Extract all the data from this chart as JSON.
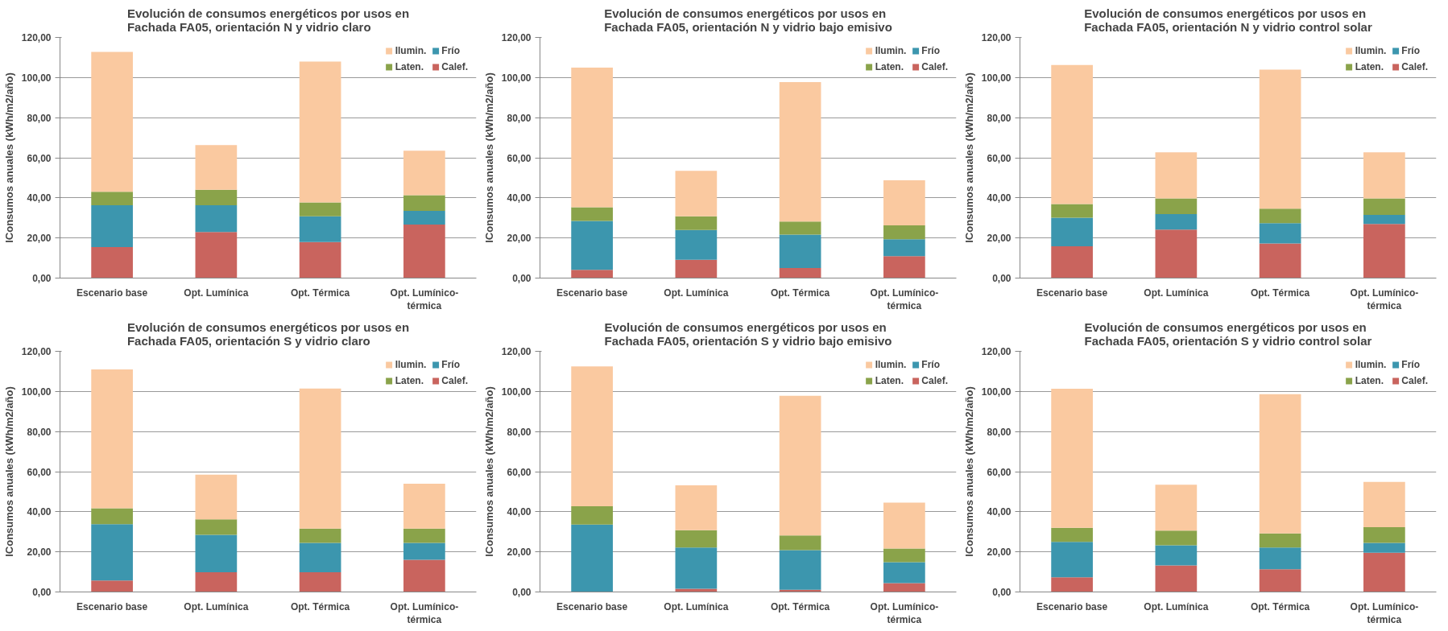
{
  "chart_data": [
    {
      "type": "bar",
      "stacked": true,
      "title": "Evolución de consumos energéticos por usos en\nFachada FA05, orientación N y vidrio claro",
      "ylabel": "lConsumos anuales (kWh/m2/año)",
      "categories": [
        "Escenario base",
        "Opt. Lumínica",
        "Opt. Térmica",
        "Opt. Lumínico-térmica"
      ],
      "ylim": [
        0,
        120
      ],
      "yticks": [
        {
          "value": 0,
          "label": "0,00"
        },
        {
          "value": 20,
          "label": "20,00"
        },
        {
          "value": 40,
          "label": "40,00"
        },
        {
          "value": 60,
          "label": "60,00"
        },
        {
          "value": 80,
          "label": "80,00"
        },
        {
          "value": 100,
          "label": "100,00"
        },
        {
          "value": 120,
          "label": "120,00"
        }
      ],
      "grid": "y",
      "legend": "top right",
      "series": [
        {
          "name": "Calef.",
          "color": "#c9645e",
          "values": [
            15.5,
            23,
            18,
            26.7
          ]
        },
        {
          "name": "Frío",
          "color": "#3c96ae",
          "values": [
            20.8,
            13.3,
            12.8,
            6.8
          ]
        },
        {
          "name": "Laten.",
          "color": "#8aa34a",
          "values": [
            6.7,
            7.7,
            6.9,
            7.8
          ]
        },
        {
          "name": "Ilumin.",
          "color": "#fac9a0",
          "values": [
            69.8,
            22.3,
            70.3,
            22.2
          ]
        }
      ]
    },
    {
      "type": "bar",
      "stacked": true,
      "title": "Evolución de consumos energéticos por usos en\nFachada FA05, orientación N y vidrio bajo emisivo",
      "ylabel": "lConsumos anuales (kWh/m2/año)",
      "categories": [
        "Escenario base",
        "Opt. Lumínica",
        "Opt. Térmica",
        "Opt. Lumínico-térmica"
      ],
      "ylim": [
        0,
        120
      ],
      "yticks": [
        {
          "value": 0,
          "label": "0,00"
        },
        {
          "value": 20,
          "label": "20,00"
        },
        {
          "value": 40,
          "label": "40,00"
        },
        {
          "value": 60,
          "label": "60,00"
        },
        {
          "value": 80,
          "label": "80,00"
        },
        {
          "value": 100,
          "label": "100,00"
        },
        {
          "value": 120,
          "label": "120,00"
        }
      ],
      "grid": "y",
      "legend": "top right",
      "series": [
        {
          "name": "Calef.",
          "color": "#c9645e",
          "values": [
            4.1,
            9.1,
            5,
            10.9
          ]
        },
        {
          "name": "Frío",
          "color": "#3c96ae",
          "values": [
            24.4,
            14.9,
            16.7,
            8.5
          ]
        },
        {
          "name": "Laten.",
          "color": "#8aa34a",
          "values": [
            6.8,
            6.8,
            6.5,
            6.9
          ]
        },
        {
          "name": "Ilumin.",
          "color": "#fac9a0",
          "values": [
            69.7,
            22.7,
            69.5,
            22.5
          ]
        }
      ]
    },
    {
      "type": "bar",
      "stacked": true,
      "title": "Evolución de consumos energéticos por usos en\nFachada FA05, orientación N y vidrio control solar",
      "ylabel": "lConsumos anuales (kWh/m2/año)",
      "categories": [
        "Escenario base",
        "Opt. Lumínica",
        "Opt. Térmica",
        "Opt. Lumínico-térmica"
      ],
      "ylim": [
        0,
        120
      ],
      "yticks": [
        {
          "value": 0,
          "label": "0,00"
        },
        {
          "value": 20,
          "label": "20,00"
        },
        {
          "value": 40,
          "label": "40,00"
        },
        {
          "value": 60,
          "label": "60,00"
        },
        {
          "value": 80,
          "label": "80,00"
        },
        {
          "value": 100,
          "label": "100,00"
        },
        {
          "value": 120,
          "label": "120,00"
        }
      ],
      "grid": "y",
      "legend": "top right",
      "series": [
        {
          "name": "Calef.",
          "color": "#c9645e",
          "values": [
            15.9,
            24.2,
            17.3,
            27
          ]
        },
        {
          "name": "Frío",
          "color": "#3c96ae",
          "values": [
            14.2,
            7.7,
            10.1,
            4.5
          ]
        },
        {
          "name": "Laten.",
          "color": "#8aa34a",
          "values": [
            6.8,
            7.8,
            7.2,
            8.2
          ]
        },
        {
          "name": "Ilumin.",
          "color": "#fac9a0",
          "values": [
            69.4,
            23,
            69.3,
            23
          ]
        }
      ]
    },
    {
      "type": "bar",
      "stacked": true,
      "title": "Evolución de consumos energéticos por usos en\nFachada FA05, orientación S y vidrio claro",
      "ylabel": "lConsumos anuales (kWh/m2/año)",
      "categories": [
        "Escenario base",
        "Opt. Lumínica",
        "Opt. Térmica",
        "Opt. Lumínico-térmica"
      ],
      "ylim": [
        0,
        120
      ],
      "yticks": [
        {
          "value": 0,
          "label": "0,00"
        },
        {
          "value": 20,
          "label": "20,00"
        },
        {
          "value": 40,
          "label": "40,00"
        },
        {
          "value": 60,
          "label": "60,00"
        },
        {
          "value": 80,
          "label": "80,00"
        },
        {
          "value": 100,
          "label": "100,00"
        },
        {
          "value": 120,
          "label": "120,00"
        }
      ],
      "grid": "y",
      "legend": "top right",
      "series": [
        {
          "name": "Calef.",
          "color": "#c9645e",
          "values": [
            5.7,
            9.8,
            9.8,
            16.1
          ]
        },
        {
          "name": "Frío",
          "color": "#3c96ae",
          "values": [
            28.1,
            18.7,
            14.7,
            8.4
          ]
        },
        {
          "name": "Laten.",
          "color": "#8aa34a",
          "values": [
            7.9,
            7.7,
            7.1,
            7.1
          ]
        },
        {
          "name": "Ilumin.",
          "color": "#fac9a0",
          "values": [
            69.3,
            22.3,
            69.8,
            22.4
          ]
        }
      ]
    },
    {
      "type": "bar",
      "stacked": true,
      "title": "Evolución de consumos energéticos por usos en\nFachada FA05, orientación S y vidrio bajo emisivo",
      "ylabel": "lConsumos anuales (kWh/m2/año)",
      "categories": [
        "Escenario base",
        "Opt. Lumínica",
        "Opt. Térmica",
        "Opt. Lumínico-térmica"
      ],
      "ylim": [
        0,
        120
      ],
      "yticks": [
        {
          "value": 0,
          "label": "0,00"
        },
        {
          "value": 20,
          "label": "20,00"
        },
        {
          "value": 40,
          "label": "40,00"
        },
        {
          "value": 60,
          "label": "60,00"
        },
        {
          "value": 80,
          "label": "80,00"
        },
        {
          "value": 100,
          "label": "100,00"
        },
        {
          "value": 120,
          "label": "120,00"
        }
      ],
      "grid": "y",
      "legend": "top right",
      "series": [
        {
          "name": "Calef.",
          "color": "#c9645e",
          "values": [
            0,
            1.6,
            1.1,
            4.4
          ]
        },
        {
          "name": "Frío",
          "color": "#3c96ae",
          "values": [
            33.6,
            20.6,
            19.8,
            10.4
          ]
        },
        {
          "name": "Laten.",
          "color": "#8aa34a",
          "values": [
            9.1,
            8.6,
            7.3,
            6.9
          ]
        },
        {
          "name": "Ilumin.",
          "color": "#fac9a0",
          "values": [
            69.8,
            22.4,
            69.6,
            22.8
          ]
        }
      ]
    },
    {
      "type": "bar",
      "stacked": true,
      "title": "Evolución de consumos energéticos por usos en\nFachada FA05, orientación S y vidrio control solar",
      "ylabel": "lConsumos anuales (kWh/m2/año)",
      "categories": [
        "Escenario base",
        "Opt. Lumínica",
        "Opt. Térmica",
        "Opt. Lumínico-térmica"
      ],
      "ylim": [
        0,
        120
      ],
      "yticks": [
        {
          "value": 0,
          "label": "0,00"
        },
        {
          "value": 20,
          "label": "20,00"
        },
        {
          "value": 40,
          "label": "40,00"
        },
        {
          "value": 60,
          "label": "60,00"
        },
        {
          "value": 80,
          "label": "80,00"
        },
        {
          "value": 100,
          "label": "100,00"
        },
        {
          "value": 120,
          "label": "120,00"
        }
      ],
      "grid": "y",
      "legend": "top right",
      "series": [
        {
          "name": "Calef.",
          "color": "#c9645e",
          "values": [
            7.3,
            13.2,
            11.3,
            19.6
          ]
        },
        {
          "name": "Frío",
          "color": "#3c96ae",
          "values": [
            17.7,
            10.1,
            10.9,
            4.9
          ]
        },
        {
          "name": "Laten.",
          "color": "#8aa34a",
          "values": [
            7,
            7.3,
            7,
            7.8
          ]
        },
        {
          "name": "Ilumin.",
          "color": "#fac9a0",
          "values": [
            69.3,
            22.9,
            69.4,
            22.6
          ]
        }
      ]
    }
  ]
}
